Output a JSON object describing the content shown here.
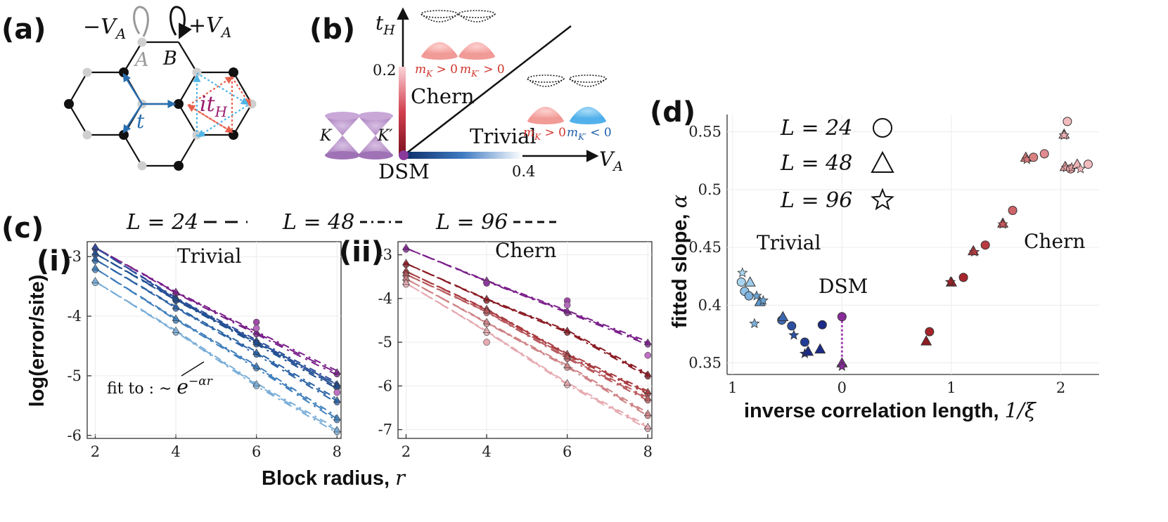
{
  "panels": {
    "a": {
      "label": "(a)",
      "minus_va": "−V",
      "minus_va_sub": "A",
      "plus_va": "+V",
      "plus_va_sub": "A",
      "site_a": "A",
      "site_b": "B",
      "hop_t": "t",
      "hop_ith": "it",
      "hop_ith_sub": "H"
    },
    "b": {
      "label": "(b)",
      "y_axis": "t",
      "y_axis_sub": "H",
      "x_axis": "V",
      "x_axis_sub": "A",
      "y_tick": "0.2",
      "x_tick": "0.4",
      "region_chern": "Chern",
      "region_trivial": "Trivial",
      "point_dsm": "DSM",
      "valley_k": "K",
      "valley_kp": "K′",
      "mass_chern_k": "m",
      "mass_chern_k_sub": "K",
      "mass_chern_k_rel": " > 0",
      "mass_chern_kp": "m",
      "mass_chern_kp_sub": "K′",
      "mass_chern_kp_rel": " > 0",
      "mass_triv_k": "m",
      "mass_triv_k_sub": "K",
      "mass_triv_k_rel": " > 0",
      "mass_triv_kp": "m",
      "mass_triv_kp_sub": "K′",
      "mass_triv_kp_rel": " < 0"
    },
    "c": {
      "label": "(c)",
      "legend": [
        {
          "text": "L = 24",
          "dash": "long"
        },
        {
          "text": "L = 48",
          "dash": "dashdot"
        },
        {
          "text": "L = 96",
          "dash": "short"
        }
      ],
      "sub_i": "(i)",
      "sub_ii": "(ii)",
      "title_i": "Trivial",
      "title_ii": "Chern",
      "ylabel": "log(error/site)",
      "xlabel": "Block radius, ",
      "xlabel_sym": "r",
      "fit_text": "fit to : ∼ ",
      "fit_exp": "e",
      "fit_exp_sup": "−αr"
    },
    "d": {
      "label": "(d)",
      "ylabel": "fitted slope, ",
      "ylabel_sym": "α",
      "xlabel": "inverse correlation length, ",
      "xlabel_sym": "1/ξ",
      "legend": [
        {
          "text": "L = 24",
          "marker": "circle"
        },
        {
          "text": "L = 48",
          "marker": "triangle"
        },
        {
          "text": "L = 96",
          "marker": "star"
        }
      ],
      "region_trivial": "Trivial",
      "region_chern": "Chern",
      "region_dsm": "DSM"
    }
  },
  "colors": {
    "hop_t": "#2a6fb0",
    "hop_ith": "#9b1d6f",
    "nnn_red": "#e8604c",
    "nnn_blue": "#4fb6e6",
    "chern_bar": "#a3112b",
    "trivial_bar": "#0b2e6b",
    "dsm_point": "#8a3a9a",
    "cone": "#b98fc9",
    "band_red": "#f4a3a0",
    "band_blue": "#5ab9f0",
    "mass_red": "#d0342c",
    "mass_blue": "#1e5fa8"
  },
  "chart_data": [
    {
      "type": "line",
      "panel": "c(i)",
      "title": "Trivial",
      "xlabel": "Block radius, r",
      "ylabel": "log(error/site)",
      "x": [
        2,
        4,
        6,
        8
      ],
      "xlim": [
        1.8,
        8.1
      ],
      "ylim": [
        -6.05,
        -2.75
      ],
      "xticks": [
        "2",
        "4",
        "6",
        "8"
      ],
      "yticks": [
        "-3",
        "-4",
        "-5",
        "-6"
      ],
      "series": [
        {
          "values": [
            -2.85,
            -3.6,
            -4.28,
            -4.95
          ],
          "color": "#7a1f8a"
        },
        {
          "values": [
            -2.85,
            -3.7,
            -4.42,
            -5.15
          ],
          "color": "#2f4e9e"
        },
        {
          "values": [
            -2.95,
            -3.72,
            -4.45,
            -5.18
          ],
          "color": "#1f4f90"
        },
        {
          "values": [
            -3.05,
            -3.85,
            -4.62,
            -5.42
          ],
          "color": "#2a63a5"
        },
        {
          "values": [
            -3.2,
            -4.05,
            -4.85,
            -5.72
          ],
          "color": "#3f7fbc"
        },
        {
          "values": [
            -3.42,
            -4.25,
            -5.15,
            -5.92
          ],
          "color": "#7aaed8"
        }
      ],
      "markers": [
        {
          "x": 6,
          "y": -4.1,
          "color": "#9d4aa6"
        },
        {
          "x": 6,
          "y": -4.2,
          "color": "#b36bbb"
        },
        {
          "x": 8,
          "y": -5.28,
          "color": "#c070c4"
        }
      ]
    },
    {
      "type": "line",
      "panel": "c(ii)",
      "title": "Chern",
      "xlabel": "Block radius, r",
      "ylabel": "log(error/site)",
      "x": [
        2,
        4,
        6,
        8
      ],
      "xlim": [
        1.8,
        8.1
      ],
      "ylim": [
        -7.2,
        -2.7
      ],
      "xticks": [
        "2",
        "4",
        "6",
        "8"
      ],
      "yticks": [
        "-3",
        "-4",
        "-5",
        "-6",
        "-7"
      ],
      "series": [
        {
          "values": [
            -2.85,
            -3.6,
            -4.3,
            -5.02
          ],
          "color": "#7a1f8a"
        },
        {
          "values": [
            -3.2,
            -4.02,
            -4.75,
            -5.75
          ],
          "color": "#8b1c24"
        },
        {
          "values": [
            -3.38,
            -4.25,
            -5.28,
            -6.15
          ],
          "color": "#a8393e"
        },
        {
          "values": [
            -3.45,
            -4.3,
            -5.35,
            -6.3
          ],
          "color": "#b95a5e"
        },
        {
          "values": [
            -3.55,
            -4.55,
            -5.55,
            -6.65
          ],
          "color": "#cf8386"
        },
        {
          "values": [
            -3.65,
            -4.75,
            -5.95,
            -6.95
          ],
          "color": "#e6aab0"
        }
      ],
      "markers": [
        {
          "x": 4,
          "y": -3.65,
          "color": "#8a3a9a"
        },
        {
          "x": 6,
          "y": -4.05,
          "color": "#9d4aa6"
        },
        {
          "x": 6,
          "y": -4.15,
          "color": "#b36bbb"
        },
        {
          "x": 8,
          "y": -5.3,
          "color": "#c070c4"
        },
        {
          "x": 4,
          "y": -5.0,
          "color": "#e6aab0"
        }
      ]
    },
    {
      "type": "scatter",
      "panel": "d",
      "xlabel": "inverse correlation length, 1/ξ",
      "ylabel": "fitted slope, α",
      "x_axis_note": "left of 0 is the trivial side (|1/ξ| decreasing toward DSM at 0); right of 0 is the Chern side",
      "xlim": [
        -1.05,
        2.35
      ],
      "ylim": [
        0.34,
        0.565
      ],
      "xticks": [
        {
          "v": -1,
          "t": "1"
        },
        {
          "v": 0,
          "t": "0"
        },
        {
          "v": 1,
          "t": "1"
        },
        {
          "v": 2,
          "t": "2"
        }
      ],
      "yticks": [
        {
          "v": 0.35,
          "t": "0.35"
        },
        {
          "v": 0.4,
          "t": "0.4"
        },
        {
          "v": 0.45,
          "t": "0.45"
        },
        {
          "v": 0.5,
          "t": "0.5"
        },
        {
          "v": 0.55,
          "t": "0.55"
        }
      ],
      "points": [
        {
          "x": -0.92,
          "y": 0.42,
          "m": "circle",
          "c": "#a8d4ef"
        },
        {
          "x": -0.89,
          "y": 0.412,
          "m": "circle",
          "c": "#8fc1e6"
        },
        {
          "x": -0.85,
          "y": 0.408,
          "m": "circle",
          "c": "#7db1dd"
        },
        {
          "x": -0.91,
          "y": 0.428,
          "m": "star",
          "c": "#a8d4ef"
        },
        {
          "x": -0.84,
          "y": 0.42,
          "m": "triangle",
          "c": "#9ecbea"
        },
        {
          "x": -0.78,
          "y": 0.408,
          "m": "star",
          "c": "#6aa2d3"
        },
        {
          "x": -0.75,
          "y": 0.403,
          "m": "triangle",
          "c": "#5c97cc"
        },
        {
          "x": -0.72,
          "y": 0.404,
          "m": "star",
          "c": "#6aa2d3"
        },
        {
          "x": -0.8,
          "y": 0.384,
          "m": "star",
          "c": "#7db1dd"
        },
        {
          "x": -0.55,
          "y": 0.387,
          "m": "circle",
          "c": "#3f69b3"
        },
        {
          "x": -0.54,
          "y": 0.39,
          "m": "triangle",
          "c": "#3b66ad"
        },
        {
          "x": -0.46,
          "y": 0.382,
          "m": "circle",
          "c": "#2c4fa0"
        },
        {
          "x": -0.44,
          "y": 0.374,
          "m": "star",
          "c": "#2c4fa0"
        },
        {
          "x": -0.34,
          "y": 0.368,
          "m": "circle",
          "c": "#233d96"
        },
        {
          "x": -0.34,
          "y": 0.358,
          "m": "star",
          "c": "#1d2f86"
        },
        {
          "x": -0.31,
          "y": 0.36,
          "m": "triangle",
          "c": "#1b2b86"
        },
        {
          "x": -0.2,
          "y": 0.362,
          "m": "triangle",
          "c": "#1c2a88"
        },
        {
          "x": -0.18,
          "y": 0.383,
          "m": "circle",
          "c": "#1c2a88"
        },
        {
          "x": 0.0,
          "y": 0.39,
          "m": "circle",
          "c": "#8a2b9a"
        },
        {
          "x": 0.0,
          "y": 0.35,
          "m": "triangle",
          "c": "#8a2b9a"
        },
        {
          "x": 0.0,
          "y": 0.347,
          "m": "star",
          "c": "#8a2b9a"
        },
        {
          "x": 0.77,
          "y": 0.369,
          "m": "triangle",
          "c": "#8c1c22"
        },
        {
          "x": 0.8,
          "y": 0.377,
          "m": "circle",
          "c": "#a4242a"
        },
        {
          "x": 1.0,
          "y": 0.42,
          "m": "triangle",
          "c": "#9a2026"
        },
        {
          "x": 0.99,
          "y": 0.42,
          "m": "star",
          "c": "#9a2026"
        },
        {
          "x": 1.11,
          "y": 0.424,
          "m": "circle",
          "c": "#a8262c"
        },
        {
          "x": 1.2,
          "y": 0.447,
          "m": "triangle",
          "c": "#b43a3f"
        },
        {
          "x": 1.21,
          "y": 0.446,
          "m": "star",
          "c": "#b43a3f"
        },
        {
          "x": 1.31,
          "y": 0.452,
          "m": "circle",
          "c": "#b73b40"
        },
        {
          "x": 1.47,
          "y": 0.471,
          "m": "triangle",
          "c": "#c9575b"
        },
        {
          "x": 1.47,
          "y": 0.47,
          "m": "star",
          "c": "#c9575b"
        },
        {
          "x": 1.56,
          "y": 0.482,
          "m": "circle",
          "c": "#cc6468"
        },
        {
          "x": 1.68,
          "y": 0.528,
          "m": "triangle",
          "c": "#d7767a"
        },
        {
          "x": 1.69,
          "y": 0.526,
          "m": "star",
          "c": "#d7767a"
        },
        {
          "x": 1.75,
          "y": 0.528,
          "m": "circle",
          "c": "#db8184"
        },
        {
          "x": 1.85,
          "y": 0.531,
          "m": "circle",
          "c": "#df8b8f"
        },
        {
          "x": 2.03,
          "y": 0.548,
          "m": "triangle",
          "c": "#eeb1b4"
        },
        {
          "x": 2.03,
          "y": 0.547,
          "m": "star",
          "c": "#eeb1b4"
        },
        {
          "x": 2.06,
          "y": 0.559,
          "m": "circle",
          "c": "#f2bcbf"
        },
        {
          "x": 2.04,
          "y": 0.52,
          "m": "triangle",
          "c": "#e8a0a4"
        },
        {
          "x": 2.05,
          "y": 0.519,
          "m": "star",
          "c": "#e8a0a4"
        },
        {
          "x": 2.09,
          "y": 0.518,
          "m": "circle",
          "c": "#e8a0a4"
        },
        {
          "x": 2.1,
          "y": 0.519,
          "m": "star",
          "c": "#eaa5a8"
        },
        {
          "x": 2.15,
          "y": 0.522,
          "m": "triangle",
          "c": "#efb3b6"
        },
        {
          "x": 2.18,
          "y": 0.518,
          "m": "star",
          "c": "#efb3b6"
        },
        {
          "x": 2.25,
          "y": 0.522,
          "m": "circle",
          "c": "#f2bcbf"
        }
      ]
    }
  ]
}
